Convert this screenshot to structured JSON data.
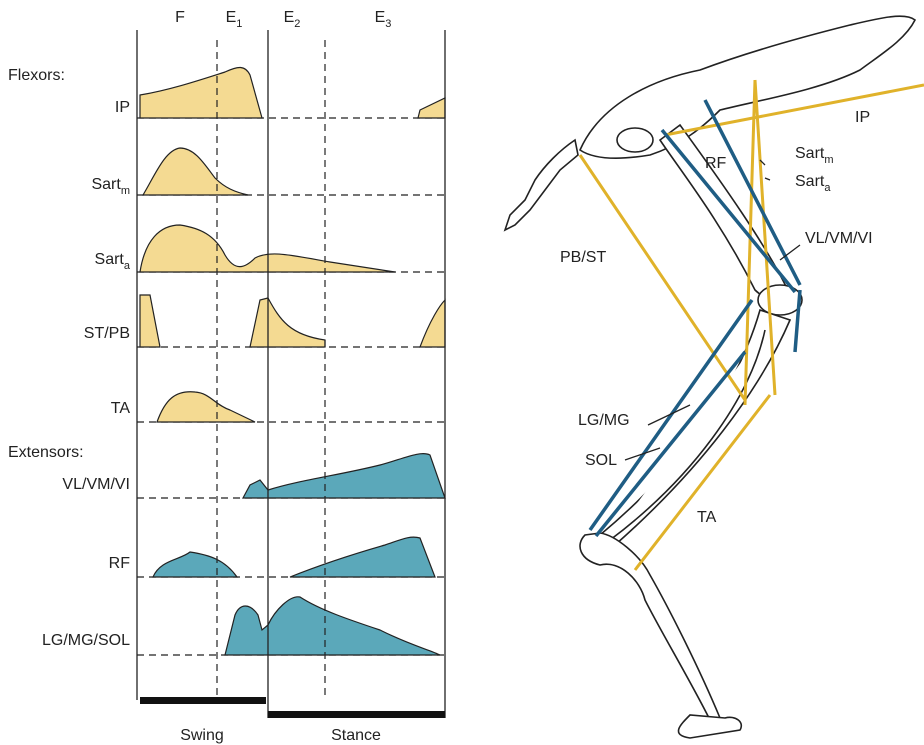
{
  "phases": [
    {
      "label": "F"
    },
    {
      "label": "E",
      "sub": "1"
    },
    {
      "label": "E",
      "sub": "2"
    },
    {
      "label": "E",
      "sub": "3"
    }
  ],
  "groups": {
    "flexors": "Flexors:",
    "extensors": "Extensors:"
  },
  "rows": [
    {
      "label": "IP"
    },
    {
      "label": "Sart",
      "sub": "m"
    },
    {
      "label": "Sart",
      "sub": "a"
    },
    {
      "label": "ST/PB"
    },
    {
      "label": "TA"
    },
    {
      "label": "VL/VM/VI"
    },
    {
      "label": "RF"
    },
    {
      "label": "LG/MG/SOL"
    }
  ],
  "support": {
    "swing": "Swing",
    "stance": "Stance"
  },
  "leg_labels": [
    {
      "label": "IP"
    },
    {
      "label": "RF"
    },
    {
      "label": "Sart",
      "sub": "m"
    },
    {
      "label": "Sart",
      "sub": "a"
    },
    {
      "label": "VL/VM/VI"
    },
    {
      "label": "PB/ST"
    },
    {
      "label": "LG/MG"
    },
    {
      "label": "SOL"
    },
    {
      "label": "TA"
    }
  ]
}
